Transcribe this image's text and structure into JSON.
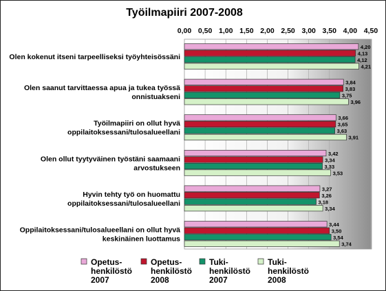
{
  "chart_data": {
    "type": "bar",
    "orientation": "horizontal",
    "title": "Työilmapiiri 2007-2008",
    "xlim": [
      0,
      4.5
    ],
    "x_ticks": [
      "0,00",
      "0,50",
      "1,00",
      "1,50",
      "2,00",
      "2,50",
      "3,00",
      "3,50",
      "4,00",
      "4,50"
    ],
    "x_tick_values": [
      0,
      0.5,
      1,
      1.5,
      2,
      2.5,
      3,
      3.5,
      4,
      4.5
    ],
    "axis_position": "top",
    "grid": true,
    "legend_position": "bottom",
    "categories": [
      [
        "Olen kokenut itseni tarpeelliseksi työyhteisössäni"
      ],
      [
        "Olen saanut tarvittaessa apua ja tukea työssä",
        "onnistuakseni"
      ],
      [
        "Työilmapiiri on ollut hyvä",
        "oppilaitoksessani/tulosalueellani"
      ],
      [
        "Olen ollut tyytyväinen työstäni saamaani",
        "arvostukseen"
      ],
      [
        "Hyvin tehty työ on huomattu",
        "oppilaitoksessani/tulosalueellani"
      ],
      [
        "Oppilaitoksessani/tulosalueellani on ollut hyvä",
        "keskinäinen luottamus"
      ]
    ],
    "series": [
      {
        "name": [
          "Opetus-",
          "henkilöstö",
          "2007"
        ],
        "color": "#e9a9d8",
        "values": [
          4.2,
          3.84,
          3.66,
          3.42,
          3.27,
          3.44
        ],
        "labels": [
          "4,20",
          "3,84",
          "3,66",
          "3,42",
          "3,27",
          "3,44"
        ]
      },
      {
        "name": [
          "Opetus-",
          "henkilöstö",
          "2008"
        ],
        "color": "#c0162e",
        "values": [
          4.13,
          3.83,
          3.65,
          3.34,
          3.26,
          3.5
        ],
        "labels": [
          "4,13",
          "3,83",
          "3,65",
          "3,34",
          "3,26",
          "3,50"
        ]
      },
      {
        "name": [
          "Tuki-",
          "henkilöstö",
          "2007"
        ],
        "color": "#14936a",
        "values": [
          4.12,
          3.75,
          3.63,
          3.33,
          3.18,
          3.54
        ],
        "labels": [
          "4,12",
          "3,75",
          "3,63",
          "3,33",
          "3,18",
          "3,54"
        ]
      },
      {
        "name": [
          "Tuki-",
          "henkilöstö",
          "2008"
        ],
        "color": "#d5f1c8",
        "values": [
          4.21,
          3.96,
          3.91,
          3.53,
          3.34,
          3.74
        ],
        "labels": [
          "4,21",
          "3,96",
          "3,91",
          "3,53",
          "3,34",
          "3,74"
        ]
      }
    ]
  }
}
